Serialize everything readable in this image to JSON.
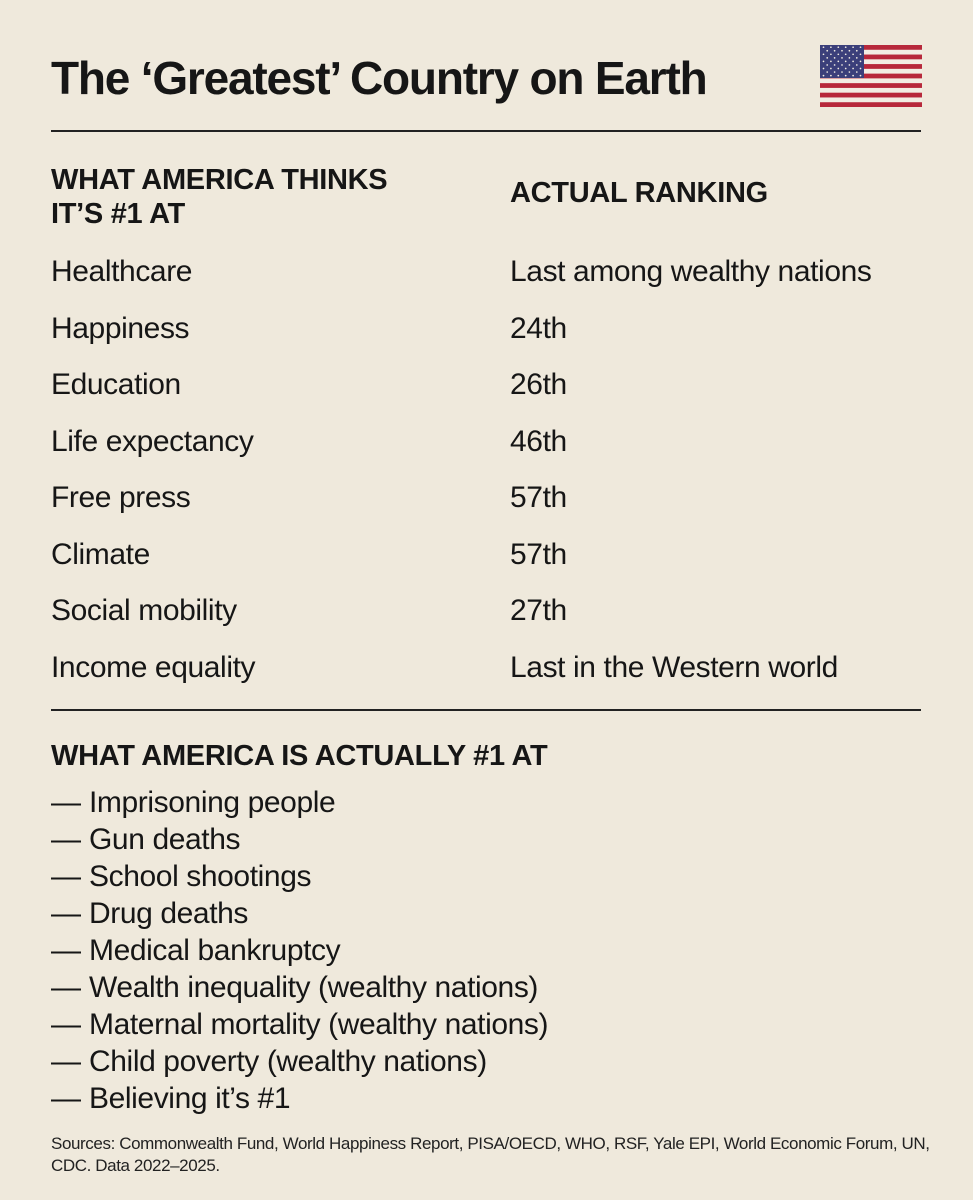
{
  "title": "The ‘Greatest’ Country on Earth",
  "flag": {
    "icon": "us-flag-icon",
    "stripe_red": "#b7283b",
    "stripe_white": "#f2ede3",
    "canton_blue": "#3b3f7a"
  },
  "table": {
    "header_left": "WHAT AMERICA THINKS IT’S #1 AT",
    "header_right": "ACTUAL RANKING",
    "rows": [
      {
        "category": "Healthcare",
        "ranking": "Last among wealthy nations"
      },
      {
        "category": "Happiness",
        "ranking": "24th"
      },
      {
        "category": "Education",
        "ranking": "26th"
      },
      {
        "category": "Life expectancy",
        "ranking": "46th"
      },
      {
        "category": "Free press",
        "ranking": "57th"
      },
      {
        "category": "Climate",
        "ranking": "57th"
      },
      {
        "category": "Social mobility",
        "ranking": "27th"
      },
      {
        "category": "Income equality",
        "ranking": "Last in the Western world"
      }
    ]
  },
  "actually_first": {
    "heading": "WHAT AMERICA IS ACTUALLY #1 AT",
    "dash": "—",
    "items": [
      "Imprisoning people",
      "Gun deaths",
      "School shootings",
      "Drug deaths",
      "Medical bankruptcy",
      "Wealth inequality (wealthy nations)",
      "Maternal mortality (wealthy nations)",
      "Child poverty (wealthy nations)",
      "Believing it’s #1"
    ]
  },
  "sources": "Sources: Commonwealth Fund, World Happiness Report, PISA/OECD, WHO, RSF, Yale EPI, World Economic Forum, UN, CDC. Data 2022–2025."
}
